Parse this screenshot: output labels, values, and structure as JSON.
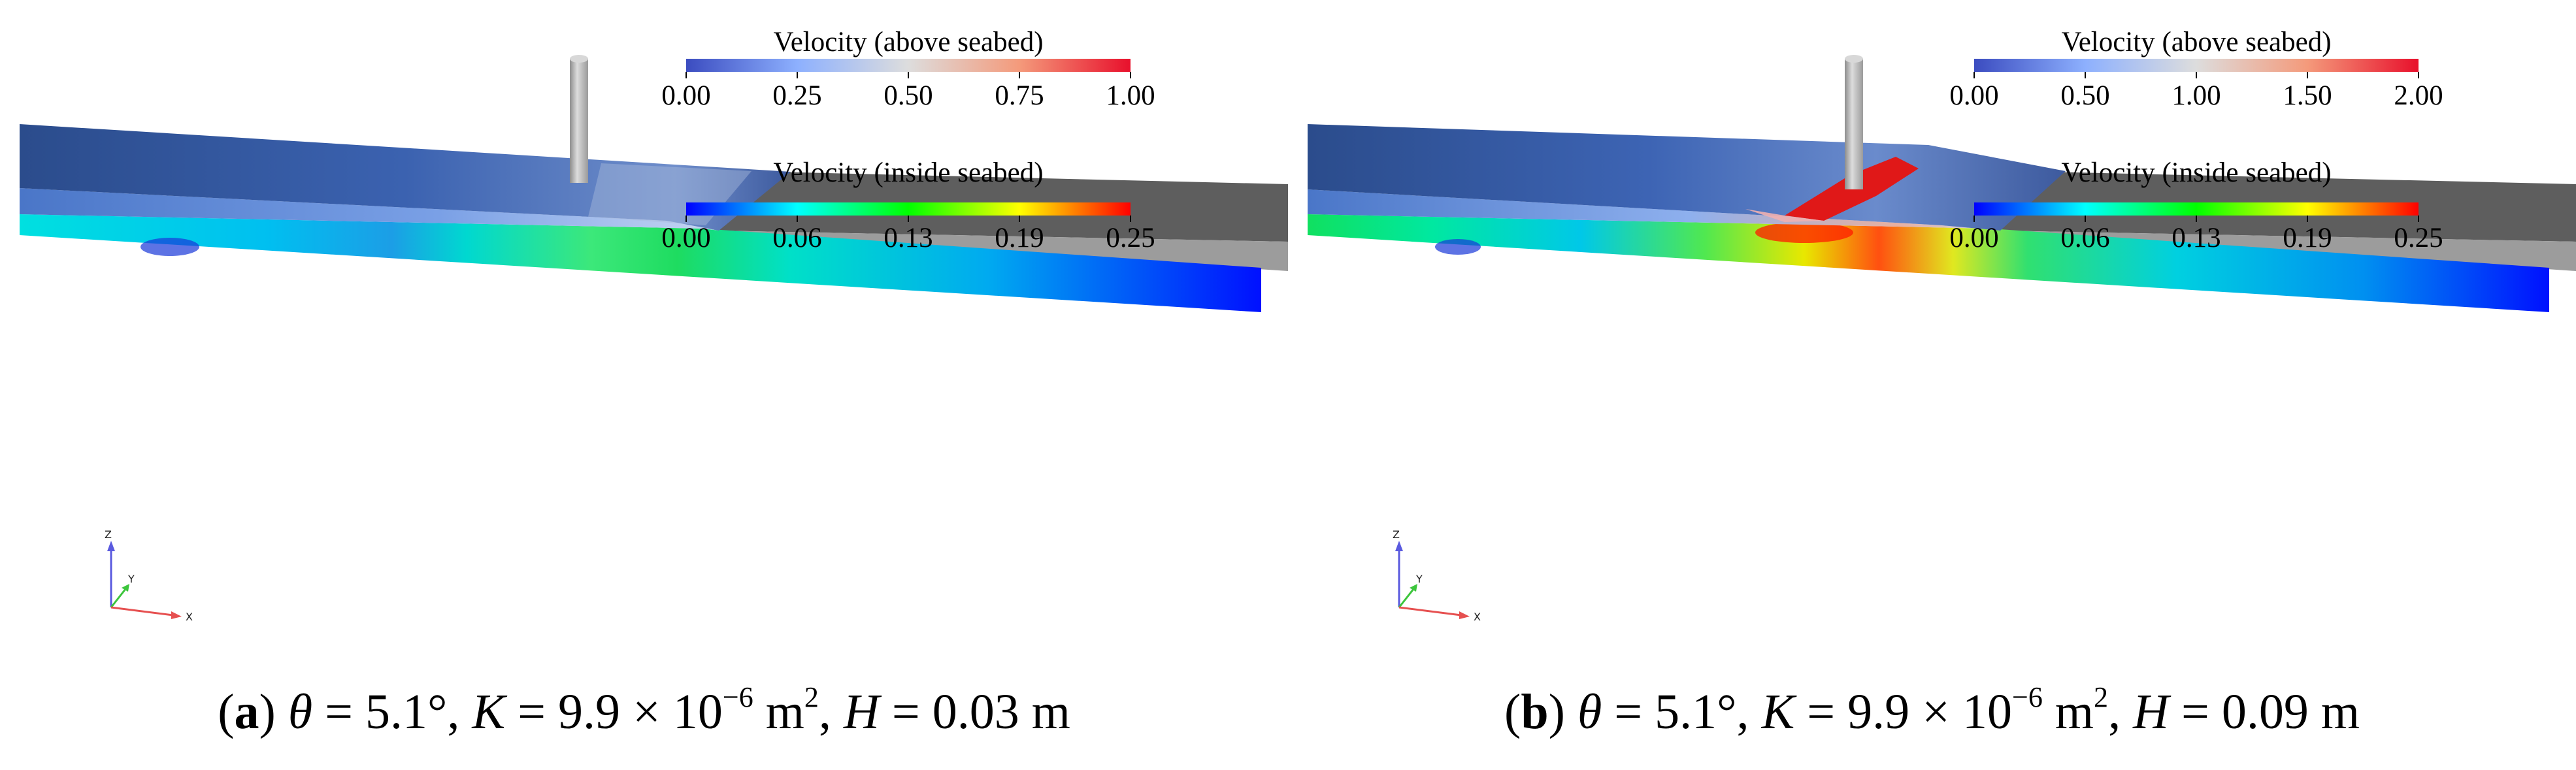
{
  "panels": [
    {
      "legend_above": {
        "title": "Velocity (above seabed)",
        "ticks": [
          "0.00",
          "0.25",
          "0.50",
          "0.75",
          "1.00"
        ]
      },
      "legend_inside": {
        "title": "Velocity (inside seabed)",
        "ticks": [
          "0.00",
          "0.06",
          "0.13",
          "0.19",
          "0.25"
        ]
      },
      "caption": {
        "tag": "a",
        "theta": "θ",
        "theta_value": " = 5.1°, ",
        "k": "K",
        "k_value": " = 9.9 × 10",
        "k_exp": "−6",
        "k_unit": " m",
        "k_unit_exp": "2",
        "sep": ", ",
        "h": "H",
        "h_value": " = 0.03 m"
      },
      "axes": {
        "z": "Z",
        "y": "Y",
        "x": "X"
      }
    },
    {
      "legend_above": {
        "title": "Velocity (above seabed)",
        "ticks": [
          "0.00",
          "0.50",
          "1.00",
          "1.50",
          "2.00"
        ]
      },
      "legend_inside": {
        "title": "Velocity (inside seabed)",
        "ticks": [
          "0.00",
          "0.06",
          "0.13",
          "0.19",
          "0.25"
        ]
      },
      "caption": {
        "tag": "b",
        "theta": "θ",
        "theta_value": " = 5.1°, ",
        "k": "K",
        "k_value": " = 9.9 × 10",
        "k_exp": "−6",
        "k_unit": " m",
        "k_unit_exp": "2",
        "sep": ", ",
        "h": "H",
        "h_value": " = 0.09 m"
      },
      "axes": {
        "z": "Z",
        "y": "Y",
        "x": "X"
      }
    }
  ],
  "colors": {
    "velocity_above_map": [
      "#3b4cc0",
      "#8db0fe",
      "#dddddd",
      "#f49a7b",
      "#e8102c"
    ],
    "velocity_inside_map": [
      "#0000ff",
      "#00ffff",
      "#00ff00",
      "#ffff00",
      "#ff0000"
    ],
    "seabed_top": "#5a5a5a",
    "seabed_side": "#9a9a9a",
    "pile": "#c4c4c4"
  }
}
